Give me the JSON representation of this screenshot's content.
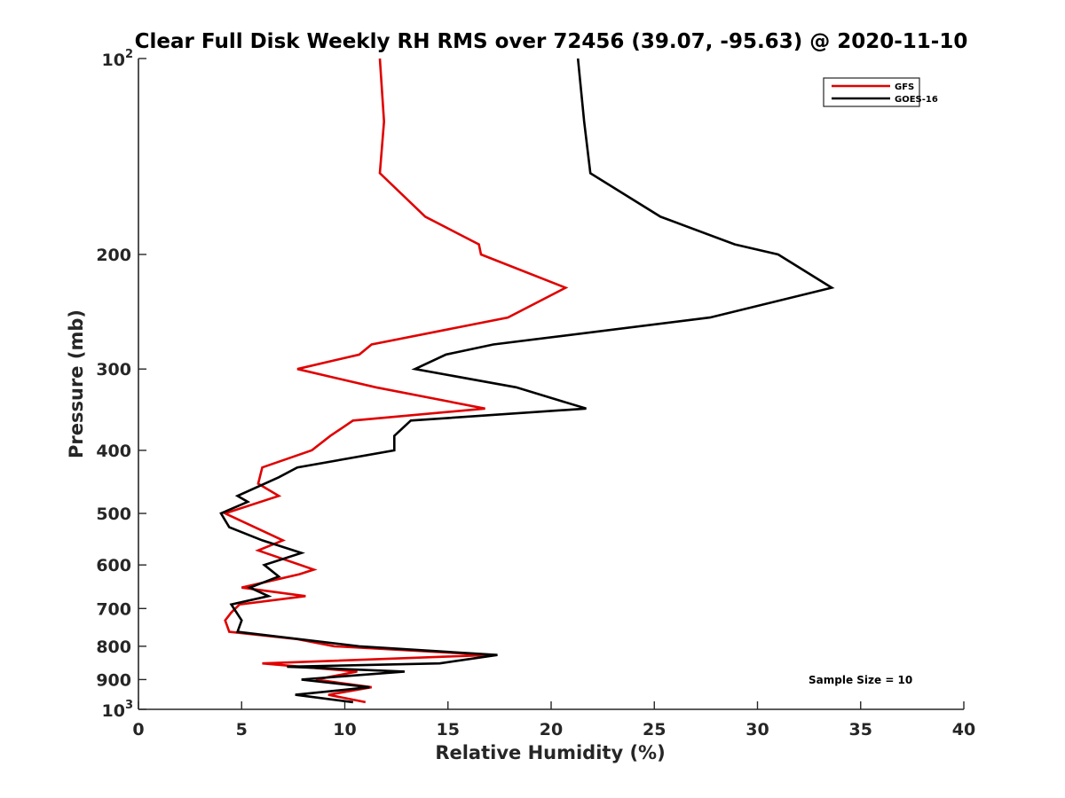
{
  "chart_data": {
    "type": "line",
    "title": "Clear Full Disk Weekly RH RMS over 72456 (39.07, -95.63) @ 2020-11-10",
    "xlabel": "Relative Humidity (%)",
    "ylabel": "Pressure (mb)",
    "xlim": [
      0,
      40
    ],
    "ylim": [
      100,
      1000
    ],
    "yscale": "log",
    "y_reversed": true,
    "x_ticks": [
      "0",
      "5",
      "10",
      "15",
      "20",
      "25",
      "30",
      "35",
      "40"
    ],
    "y_ticks": [
      {
        "value": 100,
        "base": "10",
        "exp": "2",
        "label": ""
      },
      {
        "value": 200,
        "label": "200"
      },
      {
        "value": 300,
        "label": "300"
      },
      {
        "value": 400,
        "label": "400"
      },
      {
        "value": 500,
        "label": "500"
      },
      {
        "value": 600,
        "label": "600"
      },
      {
        "value": 700,
        "label": "700"
      },
      {
        "value": 800,
        "label": "800"
      },
      {
        "value": 900,
        "label": "900"
      },
      {
        "value": 1000,
        "base": "10",
        "exp": "3",
        "label": ""
      }
    ],
    "legend_position": "top-right",
    "annotation": "Sample Size = 10",
    "series": [
      {
        "name": "GFS",
        "color": "#e00000",
        "points": [
          [
            11.7,
            100
          ],
          [
            11.9,
            125
          ],
          [
            11.7,
            150
          ],
          [
            13.9,
            175
          ],
          [
            16.5,
            193
          ],
          [
            16.6,
            200
          ],
          [
            20.7,
            225
          ],
          [
            17.9,
            250
          ],
          [
            11.3,
            275
          ],
          [
            10.7,
            285
          ],
          [
            7.7,
            300
          ],
          [
            11.5,
            320
          ],
          [
            16.8,
            345
          ],
          [
            10.4,
            360
          ],
          [
            9.3,
            380
          ],
          [
            8.4,
            400
          ],
          [
            6.0,
            425
          ],
          [
            5.8,
            450
          ],
          [
            6.8,
            470
          ],
          [
            4.2,
            500
          ],
          [
            7.0,
            550
          ],
          [
            5.8,
            570
          ],
          [
            8.5,
            610
          ],
          [
            7.8,
            620
          ],
          [
            5.0,
            650
          ],
          [
            8.1,
            670
          ],
          [
            4.9,
            690
          ],
          [
            4.5,
            710
          ],
          [
            4.2,
            730
          ],
          [
            4.4,
            760
          ],
          [
            7.7,
            780
          ],
          [
            9.5,
            800
          ],
          [
            17.1,
            825
          ],
          [
            6.0,
            850
          ],
          [
            10.6,
            875
          ],
          [
            8.6,
            900
          ],
          [
            11.3,
            925
          ],
          [
            9.2,
            950
          ],
          [
            11.0,
            975
          ]
        ]
      },
      {
        "name": "GOES-16",
        "color": "#000000",
        "points": [
          [
            21.3,
            100
          ],
          [
            21.6,
            125
          ],
          [
            21.9,
            150
          ],
          [
            25.3,
            175
          ],
          [
            28.9,
            193
          ],
          [
            31.0,
            200
          ],
          [
            33.6,
            225
          ],
          [
            27.7,
            250
          ],
          [
            17.2,
            275
          ],
          [
            14.9,
            285
          ],
          [
            13.4,
            300
          ],
          [
            18.3,
            320
          ],
          [
            21.7,
            345
          ],
          [
            13.2,
            360
          ],
          [
            12.4,
            380
          ],
          [
            12.4,
            400
          ],
          [
            7.7,
            425
          ],
          [
            6.8,
            440
          ],
          [
            4.8,
            470
          ],
          [
            5.3,
            480
          ],
          [
            4.0,
            500
          ],
          [
            4.4,
            525
          ],
          [
            6.0,
            550
          ],
          [
            7.9,
            575
          ],
          [
            6.1,
            600
          ],
          [
            6.8,
            625
          ],
          [
            5.4,
            650
          ],
          [
            6.3,
            670
          ],
          [
            4.5,
            690
          ],
          [
            5.0,
            730
          ],
          [
            4.8,
            760
          ],
          [
            10.7,
            800
          ],
          [
            17.4,
            825
          ],
          [
            14.6,
            850
          ],
          [
            7.2,
            860
          ],
          [
            12.9,
            875
          ],
          [
            7.9,
            900
          ],
          [
            11.2,
            925
          ],
          [
            7.6,
            950
          ],
          [
            10.4,
            975
          ]
        ]
      }
    ]
  }
}
